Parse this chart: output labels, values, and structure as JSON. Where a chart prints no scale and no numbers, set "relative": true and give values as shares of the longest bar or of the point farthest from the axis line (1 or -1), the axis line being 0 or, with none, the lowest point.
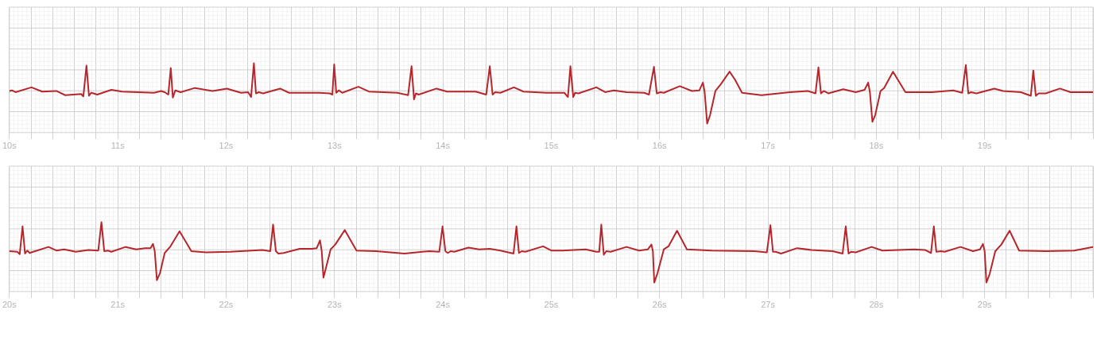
{
  "chart_data": [
    {
      "type": "line",
      "relative": true,
      "grid": true,
      "legend": false,
      "marker": "none",
      "line_style": "solid",
      "xlim": [
        10,
        20
      ],
      "xticks": [
        {
          "value": 10,
          "label": "10s"
        },
        {
          "value": 10.2,
          "label": null
        },
        {
          "value": 10.4,
          "label": null
        },
        {
          "value": 10.6,
          "label": null
        },
        {
          "value": 10.8,
          "label": null
        },
        {
          "value": 11,
          "label": "11s"
        },
        {
          "value": 11.2,
          "label": null
        },
        {
          "value": 11.4,
          "label": null
        },
        {
          "value": 11.6,
          "label": null
        },
        {
          "value": 11.8,
          "label": null
        },
        {
          "value": 12,
          "label": "12s"
        },
        {
          "value": 12.2,
          "label": null
        },
        {
          "value": 12.4,
          "label": null
        },
        {
          "value": 12.6,
          "label": null
        },
        {
          "value": 12.8,
          "label": null
        },
        {
          "value": 13,
          "label": "13s"
        },
        {
          "value": 13.2,
          "label": null
        },
        {
          "value": 13.4,
          "label": null
        },
        {
          "value": 13.6,
          "label": null
        },
        {
          "value": 13.8,
          "label": null
        },
        {
          "value": 14,
          "label": "14s"
        },
        {
          "value": 14.2,
          "label": null
        },
        {
          "value": 14.4,
          "label": null
        },
        {
          "value": 14.6,
          "label": null
        },
        {
          "value": 14.8,
          "label": null
        },
        {
          "value": 15,
          "label": "15s"
        },
        {
          "value": 15.2,
          "label": null
        },
        {
          "value": 15.4,
          "label": null
        },
        {
          "value": 15.6,
          "label": null
        },
        {
          "value": 15.8,
          "label": null
        },
        {
          "value": 16,
          "label": "16s"
        },
        {
          "value": 16.2,
          "label": null
        },
        {
          "value": 16.4,
          "label": null
        },
        {
          "value": 16.6,
          "label": null
        },
        {
          "value": 16.8,
          "label": null
        },
        {
          "value": 17,
          "label": "17s"
        },
        {
          "value": 17.2,
          "label": null
        },
        {
          "value": 17.4,
          "label": null
        },
        {
          "value": 17.6,
          "label": null
        },
        {
          "value": 17.8,
          "label": null
        },
        {
          "value": 18,
          "label": "18s"
        },
        {
          "value": 18.2,
          "label": null
        },
        {
          "value": 18.4,
          "label": null
        },
        {
          "value": 18.6,
          "label": null
        },
        {
          "value": 18.8,
          "label": null
        },
        {
          "value": 19,
          "label": "19s"
        },
        {
          "value": 19.2,
          "label": null
        },
        {
          "value": 19.4,
          "label": null
        },
        {
          "value": 19.6,
          "label": null
        },
        {
          "value": 19.8,
          "label": null
        },
        {
          "value": 20,
          "label": null
        }
      ],
      "series": [
        {
          "color": "#b5272d",
          "x": [
            10.0,
            10.023,
            10.056,
            10.203,
            10.302,
            10.433,
            10.515,
            10.662,
            10.682,
            10.711,
            10.734,
            10.754,
            10.777,
            10.81,
            10.941,
            11.039,
            11.334,
            11.4,
            11.433,
            11.466,
            11.489,
            11.508,
            11.531,
            11.58,
            11.711,
            11.875,
            12.007,
            12.138,
            12.203,
            12.23,
            12.256,
            12.275,
            12.302,
            12.341,
            12.498,
            12.58,
            12.859,
            12.957,
            12.98,
            12.997,
            13.016,
            13.039,
            13.072,
            13.22,
            13.318,
            13.58,
            13.679,
            13.711,
            13.734,
            13.751,
            13.777,
            13.941,
            14.039,
            14.302,
            14.4,
            14.433,
            14.459,
            14.482,
            14.531,
            14.656,
            14.744,
            14.957,
            15.0,
            15.121,
            15.154,
            15.177,
            15.203,
            15.22,
            15.252,
            15.416,
            15.498,
            15.58,
            15.695,
            15.859,
            15.902,
            15.948,
            15.974,
            16.007,
            16.039,
            16.187,
            16.298,
            16.367,
            16.4,
            16.416,
            16.439,
            16.466,
            16.515,
            16.564,
            16.646,
            16.695,
            16.761,
            16.941,
            17.203,
            17.367,
            17.439,
            17.466,
            17.489,
            17.515,
            17.557,
            17.695,
            17.81,
            17.892,
            17.925,
            17.941,
            17.964,
            17.99,
            18.039,
            18.072,
            18.154,
            18.269,
            18.515,
            18.711,
            18.793,
            18.826,
            18.849,
            18.875,
            18.925,
            19.089,
            19.17,
            19.334,
            19.426,
            19.449,
            19.472,
            19.498,
            19.564,
            19.695,
            19.793,
            20.0
          ],
          "values": [
            0.54,
            0.55,
            0.52,
            0.6,
            0.53,
            0.54,
            0.47,
            0.49,
            0.45,
            0.96,
            0.46,
            0.51,
            0.5,
            0.48,
            0.56,
            0.53,
            0.51,
            0.54,
            0.52,
            0.48,
            0.92,
            0.43,
            0.55,
            0.52,
            0.59,
            0.54,
            0.58,
            0.51,
            0.52,
            0.44,
            1.0,
            0.5,
            0.52,
            0.5,
            0.58,
            0.51,
            0.51,
            0.5,
            0.48,
            0.98,
            0.51,
            0.55,
            0.51,
            0.61,
            0.53,
            0.51,
            0.47,
            0.95,
            0.4,
            0.5,
            0.48,
            0.58,
            0.53,
            0.53,
            0.48,
            0.95,
            0.48,
            0.52,
            0.51,
            0.6,
            0.53,
            0.51,
            0.51,
            0.51,
            0.44,
            0.95,
            0.44,
            0.51,
            0.5,
            0.6,
            0.52,
            0.55,
            0.52,
            0.51,
            0.48,
            0.94,
            0.5,
            0.52,
            0.51,
            0.62,
            0.54,
            0.55,
            0.68,
            0.52,
            0.0,
            0.14,
            0.54,
            0.65,
            0.86,
            0.73,
            0.51,
            0.47,
            0.52,
            0.54,
            0.5,
            0.93,
            0.5,
            0.54,
            0.5,
            0.57,
            0.52,
            0.56,
            0.68,
            0.52,
            0.03,
            0.14,
            0.54,
            0.59,
            0.86,
            0.52,
            0.52,
            0.55,
            0.51,
            0.97,
            0.5,
            0.52,
            0.5,
            0.58,
            0.54,
            0.52,
            0.46,
            0.88,
            0.46,
            0.5,
            0.5,
            0.58,
            0.52,
            0.52
          ]
        }
      ]
    },
    {
      "type": "line",
      "relative": true,
      "grid": true,
      "legend": false,
      "marker": "none",
      "line_style": "solid",
      "xlim": [
        20,
        30
      ],
      "xticks": [
        {
          "value": 20,
          "label": "20s"
        },
        {
          "value": 20.2,
          "label": null
        },
        {
          "value": 20.4,
          "label": null
        },
        {
          "value": 20.6,
          "label": null
        },
        {
          "value": 20.8,
          "label": null
        },
        {
          "value": 21,
          "label": "21s"
        },
        {
          "value": 21.2,
          "label": null
        },
        {
          "value": 21.4,
          "label": null
        },
        {
          "value": 21.6,
          "label": null
        },
        {
          "value": 21.8,
          "label": null
        },
        {
          "value": 22,
          "label": "22s"
        },
        {
          "value": 22.2,
          "label": null
        },
        {
          "value": 22.4,
          "label": null
        },
        {
          "value": 22.6,
          "label": null
        },
        {
          "value": 22.8,
          "label": null
        },
        {
          "value": 23,
          "label": "23s"
        },
        {
          "value": 23.2,
          "label": null
        },
        {
          "value": 23.4,
          "label": null
        },
        {
          "value": 23.6,
          "label": null
        },
        {
          "value": 23.8,
          "label": null
        },
        {
          "value": 24,
          "label": "24s"
        },
        {
          "value": 24.2,
          "label": null
        },
        {
          "value": 24.4,
          "label": null
        },
        {
          "value": 24.6,
          "label": null
        },
        {
          "value": 24.8,
          "label": null
        },
        {
          "value": 25,
          "label": "25s"
        },
        {
          "value": 25.2,
          "label": null
        },
        {
          "value": 25.4,
          "label": null
        },
        {
          "value": 25.6,
          "label": null
        },
        {
          "value": 25.8,
          "label": null
        },
        {
          "value": 26,
          "label": "26s"
        },
        {
          "value": 26.2,
          "label": null
        },
        {
          "value": 26.4,
          "label": null
        },
        {
          "value": 26.6,
          "label": null
        },
        {
          "value": 26.8,
          "label": null
        },
        {
          "value": 27,
          "label": "27s"
        },
        {
          "value": 27.2,
          "label": null
        },
        {
          "value": 27.4,
          "label": null
        },
        {
          "value": 27.6,
          "label": null
        },
        {
          "value": 27.8,
          "label": null
        },
        {
          "value": 28,
          "label": "28s"
        },
        {
          "value": 28.2,
          "label": null
        },
        {
          "value": 28.4,
          "label": null
        },
        {
          "value": 28.6,
          "label": null
        },
        {
          "value": 28.8,
          "label": null
        },
        {
          "value": 29,
          "label": "29s"
        },
        {
          "value": 29.2,
          "label": null
        },
        {
          "value": 29.4,
          "label": null
        },
        {
          "value": 29.6,
          "label": null
        },
        {
          "value": 29.8,
          "label": null
        },
        {
          "value": 30,
          "label": null
        }
      ],
      "series": [
        {
          "color": "#b5272d",
          "x": [
            20.0,
            20.072,
            20.095,
            20.121,
            20.144,
            20.164,
            20.187,
            20.22,
            20.361,
            20.433,
            20.505,
            20.613,
            20.728,
            20.82,
            20.849,
            20.875,
            20.908,
            20.941,
            21.072,
            21.17,
            21.252,
            21.302,
            21.325,
            21.341,
            21.361,
            21.39,
            21.433,
            21.482,
            21.57,
            21.679,
            21.81,
            22.039,
            22.334,
            22.407,
            22.433,
            22.459,
            22.482,
            22.531,
            22.679,
            22.793,
            22.836,
            22.866,
            22.882,
            22.898,
            22.918,
            22.964,
            23.007,
            23.095,
            23.203,
            23.384,
            23.646,
            23.81,
            23.875,
            23.967,
            23.997,
            24.023,
            24.046,
            24.072,
            24.105,
            24.236,
            24.334,
            24.433,
            24.531,
            24.652,
            24.679,
            24.702,
            24.728,
            24.761,
            24.925,
            25.0,
            25.105,
            25.318,
            25.416,
            25.443,
            25.462,
            25.485,
            25.508,
            25.548,
            25.695,
            25.81,
            25.892,
            25.925,
            25.938,
            25.951,
            25.98,
            26.039,
            26.082,
            26.161,
            26.252,
            26.482,
            26.875,
            26.99,
            27.023,
            27.046,
            27.072,
            27.121,
            27.269,
            27.4,
            27.597,
            27.689,
            27.718,
            27.744,
            27.767,
            27.81,
            27.957,
            28.056,
            28.351,
            28.449,
            28.505,
            28.531,
            28.554,
            28.597,
            28.63,
            28.777,
            28.892,
            28.957,
            28.984,
            29.0,
            29.016,
            29.046,
            29.098,
            29.154,
            29.23,
            29.318,
            29.564,
            29.826,
            30.0
          ],
          "values": [
            0.52,
            0.51,
            0.47,
            0.93,
            0.48,
            0.53,
            0.49,
            0.51,
            0.59,
            0.53,
            0.55,
            0.51,
            0.54,
            0.53,
            1.0,
            0.52,
            0.53,
            0.51,
            0.59,
            0.55,
            0.57,
            0.57,
            0.64,
            0.52,
            0.04,
            0.16,
            0.49,
            0.59,
            0.85,
            0.52,
            0.5,
            0.51,
            0.54,
            0.52,
            0.96,
            0.52,
            0.48,
            0.49,
            0.56,
            0.56,
            0.57,
            0.7,
            0.52,
            0.08,
            0.22,
            0.55,
            0.63,
            0.87,
            0.53,
            0.52,
            0.48,
            0.51,
            0.52,
            0.51,
            0.93,
            0.52,
            0.49,
            0.52,
            0.51,
            0.58,
            0.55,
            0.56,
            0.53,
            0.48,
            0.93,
            0.49,
            0.52,
            0.51,
            0.6,
            0.53,
            0.53,
            0.55,
            0.51,
            0.51,
            0.96,
            0.46,
            0.52,
            0.51,
            0.59,
            0.53,
            0.55,
            0.63,
            0.52,
            0.0,
            0.15,
            0.55,
            0.6,
            0.86,
            0.55,
            0.53,
            0.52,
            0.5,
            0.95,
            0.51,
            0.51,
            0.48,
            0.57,
            0.54,
            0.52,
            0.48,
            0.93,
            0.48,
            0.51,
            0.5,
            0.59,
            0.53,
            0.55,
            0.54,
            0.49,
            0.93,
            0.51,
            0.52,
            0.51,
            0.59,
            0.52,
            0.55,
            0.64,
            0.52,
            0.0,
            0.14,
            0.52,
            0.63,
            0.86,
            0.53,
            0.52,
            0.53,
            0.59
          ]
        }
      ]
    }
  ]
}
